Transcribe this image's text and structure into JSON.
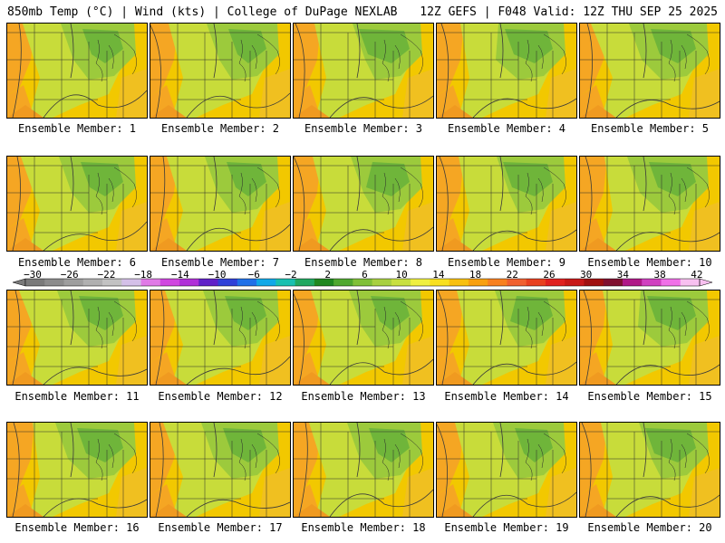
{
  "header": {
    "title_left": "850mb Temp (°C) | Wind (kts) | College of DuPage NEXLAB",
    "title_right": "12Z GEFS | F048 Valid: 12Z THU SEP 25 2025"
  },
  "panel_label_prefix": "Ensemble Member:",
  "members": [
    1,
    2,
    3,
    4,
    5,
    6,
    7,
    8,
    9,
    10,
    11,
    12,
    13,
    14,
    15,
    16,
    17,
    18,
    19,
    20
  ],
  "colorbar": {
    "tick_labels": [
      "−30",
      "−26",
      "−22",
      "−18",
      "−14",
      "−10",
      "−6",
      "−2",
      "2",
      "6",
      "10",
      "14",
      "18",
      "22",
      "26",
      "30",
      "34",
      "38",
      "42"
    ],
    "colors": [
      "#7a7a7a",
      "#8c8c8c",
      "#9e9e9e",
      "#b0b0b0",
      "#c2c2c2",
      "#d4c0e8",
      "#e07ae6",
      "#d046e0",
      "#b030d8",
      "#6020c8",
      "#3040d8",
      "#2070e8",
      "#10a8e8",
      "#18c0b0",
      "#20a860",
      "#208820",
      "#50a830",
      "#80c038",
      "#a8d040",
      "#c8e040",
      "#f0f040",
      "#f8e020",
      "#f8c010",
      "#f8a010",
      "#f88020",
      "#f06030",
      "#e84020",
      "#e02020",
      "#c81818",
      "#a01010",
      "#801030",
      "#b01888",
      "#d040c0",
      "#f070e8",
      "#f8c0f0"
    ]
  }
}
